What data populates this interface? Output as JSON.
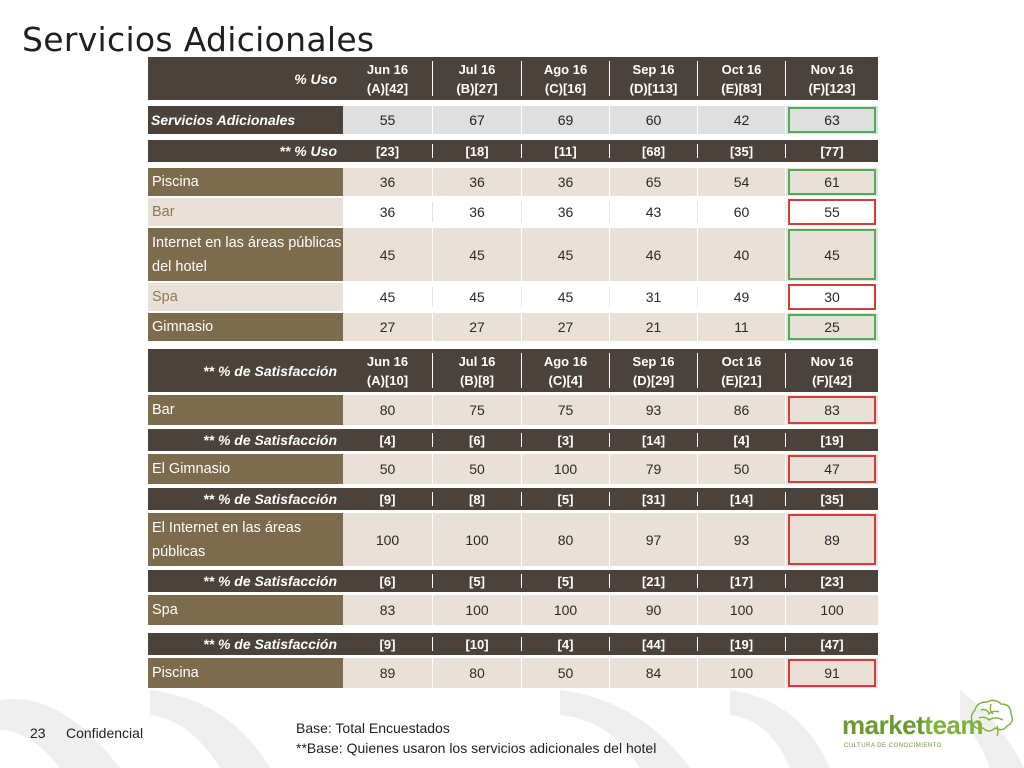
{
  "title": "Servicios Adicionales",
  "columns": [
    {
      "month": "Jun 16",
      "code": "(A)[42]"
    },
    {
      "month": "Jul 16",
      "code": "(B)[27]"
    },
    {
      "month": "Ago 16",
      "code": "(C)[16]"
    },
    {
      "month": "Sep 16",
      "code": "(D)[113]"
    },
    {
      "month": "Oct 16",
      "code": "(E)[83]"
    },
    {
      "month": "Nov 16",
      "code": "(F)[123]"
    }
  ],
  "sat_columns": [
    {
      "month": "Jun 16",
      "code": "(A)[10]"
    },
    {
      "month": "Jul 16",
      "code": "(B)[8]"
    },
    {
      "month": "Ago 16",
      "code": "(C)[4]"
    },
    {
      "month": "Sep 16",
      "code": "(D)[29]"
    },
    {
      "month": "Oct 16",
      "code": "(E)[21]"
    },
    {
      "month": "Nov 16",
      "code": "(F)[42]"
    }
  ],
  "header_uso": "% Uso",
  "summary": {
    "label": "Servicios Adicionales",
    "values": [
      "55",
      "67",
      "69",
      "60",
      "42",
      "63"
    ],
    "highlight": "green"
  },
  "header_uso_base": {
    "label": "** % Uso",
    "values": [
      "[23]",
      "[18]",
      "[11]",
      "[68]",
      "[35]",
      "[77]"
    ]
  },
  "uso_rows": [
    {
      "label": "Piscina",
      "values": [
        "36",
        "36",
        "36",
        "65",
        "54",
        "61"
      ],
      "highlight": "green",
      "shade": "dark"
    },
    {
      "label": "Bar",
      "values": [
        "36",
        "36",
        "36",
        "43",
        "60",
        "55"
      ],
      "highlight": "red",
      "shade": "light"
    },
    {
      "label": "Internet en las áreas públicas del hotel",
      "values": [
        "45",
        "45",
        "45",
        "46",
        "40",
        "45"
      ],
      "highlight": "green",
      "shade": "dark"
    },
    {
      "label": "Spa",
      "values": [
        "45",
        "45",
        "45",
        "31",
        "49",
        "30"
      ],
      "highlight": "red",
      "shade": "light"
    },
    {
      "label": "Gimnasio",
      "values": [
        "27",
        "27",
        "27",
        "21",
        "11",
        "25"
      ],
      "highlight": "green",
      "shade": "dark"
    }
  ],
  "sat_header_label": "** % de Satisfacción",
  "sat_blocks": [
    {
      "base": null,
      "label": "Bar",
      "values": [
        "80",
        "75",
        "75",
        "93",
        "86",
        "83"
      ],
      "highlight": "red"
    },
    {
      "base": [
        "[4]",
        "[6]",
        "[3]",
        "[14]",
        "[4]",
        "[19]"
      ],
      "label": "El Gimnasio",
      "values": [
        "50",
        "50",
        "100",
        "79",
        "50",
        "47"
      ],
      "highlight": "red"
    },
    {
      "base": [
        "[9]",
        "[8]",
        "[5]",
        "[31]",
        "[14]",
        "[35]"
      ],
      "label": "El Internet en las áreas públicas",
      "values": [
        "100",
        "100",
        "80",
        "97",
        "93",
        "89"
      ],
      "highlight": "red"
    },
    {
      "base": [
        "[6]",
        "[5]",
        "[5]",
        "[21]",
        "[17]",
        "[23]"
      ],
      "label": "Spa",
      "values": [
        "83",
        "100",
        "100",
        "90",
        "100",
        "100"
      ],
      "highlight": null
    },
    {
      "base": [
        "[9]",
        "[10]",
        "[4]",
        "[44]",
        "[19]",
        "[47]"
      ],
      "label": "Piscina",
      "values": [
        "89",
        "80",
        "50",
        "84",
        "100",
        "91"
      ],
      "highlight": "red"
    }
  ],
  "footer": {
    "page_number": "23",
    "confidential": "Confidencial",
    "base_line1": "Base: Total Encuestados",
    "base_line2": "**Base: Quienes usaron los servicios adicionales del hotel"
  },
  "logo": {
    "market": "market",
    "team": "team",
    "tagline": "CULTURA DE CONOCIMIENTO"
  },
  "colors": {
    "header": "#4a423b",
    "dark_label": "#7c6b4d",
    "light_cell": "#e9e1d8",
    "green": "#4fae5a",
    "red": "#d63a3a"
  }
}
